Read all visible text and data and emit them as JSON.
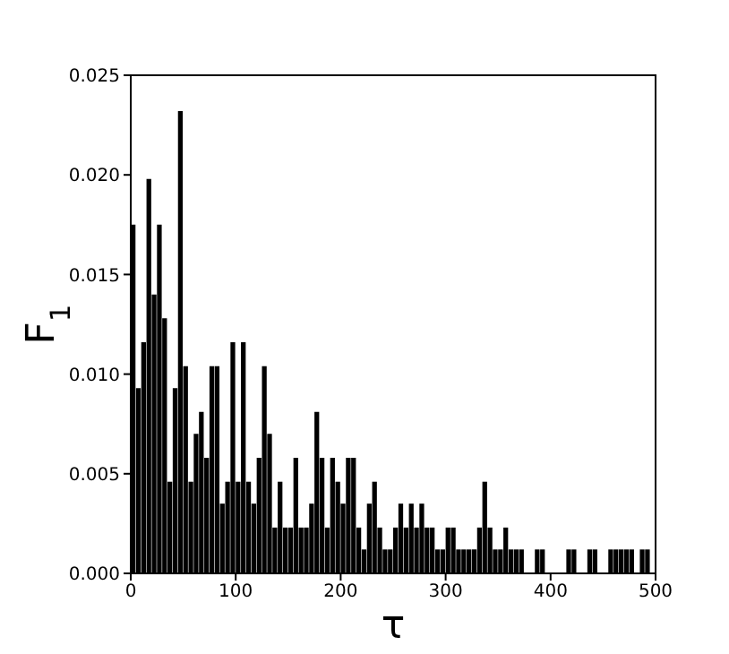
{
  "chart_data": {
    "type": "histogram",
    "xlabel": "τ",
    "ylabel": "F$_{1}$",
    "bins": [
      0,
      5,
      10,
      15,
      20,
      25,
      30,
      35,
      40,
      45,
      50,
      55,
      60,
      65,
      70,
      75,
      80,
      85,
      90,
      95,
      100,
      105,
      110,
      115,
      120,
      125,
      130,
      135,
      140,
      145,
      150,
      155,
      160,
      165,
      170,
      175,
      180,
      185,
      190,
      195,
      200,
      205,
      210,
      215,
      220,
      225,
      230,
      235,
      240,
      245,
      250,
      255,
      260,
      265,
      270,
      275,
      280,
      285,
      290,
      295,
      300,
      305,
      310,
      315,
      320,
      325,
      330,
      335,
      340,
      345,
      350,
      355,
      360,
      365,
      370,
      375,
      380,
      385,
      390,
      395,
      400,
      405,
      410,
      415,
      420,
      425,
      430,
      435,
      440,
      445,
      450,
      455,
      460,
      465,
      470,
      475,
      480,
      485,
      490,
      495,
      500
    ],
    "values": [
      0.0175,
      0.0093,
      0.0116,
      0.0198,
      0.014,
      0.0175,
      0.0128,
      0.0046,
      0.0093,
      0.0232,
      0.0104,
      0.0046,
      0.007,
      0.0081,
      0.0058,
      0.0104,
      0.0104,
      0.0035,
      0.0046,
      0.0116,
      0.0046,
      0.0116,
      0.0046,
      0.0035,
      0.0058,
      0.0104,
      0.007,
      0.0023,
      0.0046,
      0.0023,
      0.0023,
      0.0058,
      0.0023,
      0.0023,
      0.0035,
      0.0081,
      0.0058,
      0.0023,
      0.0058,
      0.0046,
      0.0035,
      0.0058,
      0.0058,
      0.0023,
      0.0012,
      0.0035,
      0.0046,
      0.0023,
      0.0012,
      0.0012,
      0.0023,
      0.0035,
      0.0023,
      0.0035,
      0.0023,
      0.0035,
      0.0023,
      0.0023,
      0.0012,
      0.0012,
      0.0023,
      0.0023,
      0.0012,
      0.0012,
      0.0012,
      0.0012,
      0.0023,
      0.0046,
      0.0023,
      0.0012,
      0.0012,
      0.0023,
      0.0012,
      0.0012,
      0.0012,
      0,
      0,
      0.0012,
      0.0012,
      0,
      0,
      0,
      0,
      0.0012,
      0.0012,
      0,
      0,
      0.0012,
      0.0012,
      0,
      0,
      0.0012,
      0.0012,
      0.0012,
      0.0012,
      0.0012,
      0,
      0.0012,
      0.0012,
      0
    ],
    "color": "#000000",
    "xlim": [
      0,
      500
    ],
    "xticks": [
      0,
      100,
      200,
      300,
      400,
      500
    ],
    "ylim": [
      0,
      0.025
    ],
    "yticks": [
      {
        "value": 0,
        "label": "0.000"
      },
      {
        "value": 0.005,
        "label": "0.005"
      },
      {
        "value": 0.01,
        "label": "0.010"
      },
      {
        "value": 0.015,
        "label": "0.015"
      },
      {
        "value": 0.02,
        "label": "0.020"
      },
      {
        "value": 0.025,
        "label": "0.025"
      }
    ],
    "grid": false,
    "legend": false
  }
}
